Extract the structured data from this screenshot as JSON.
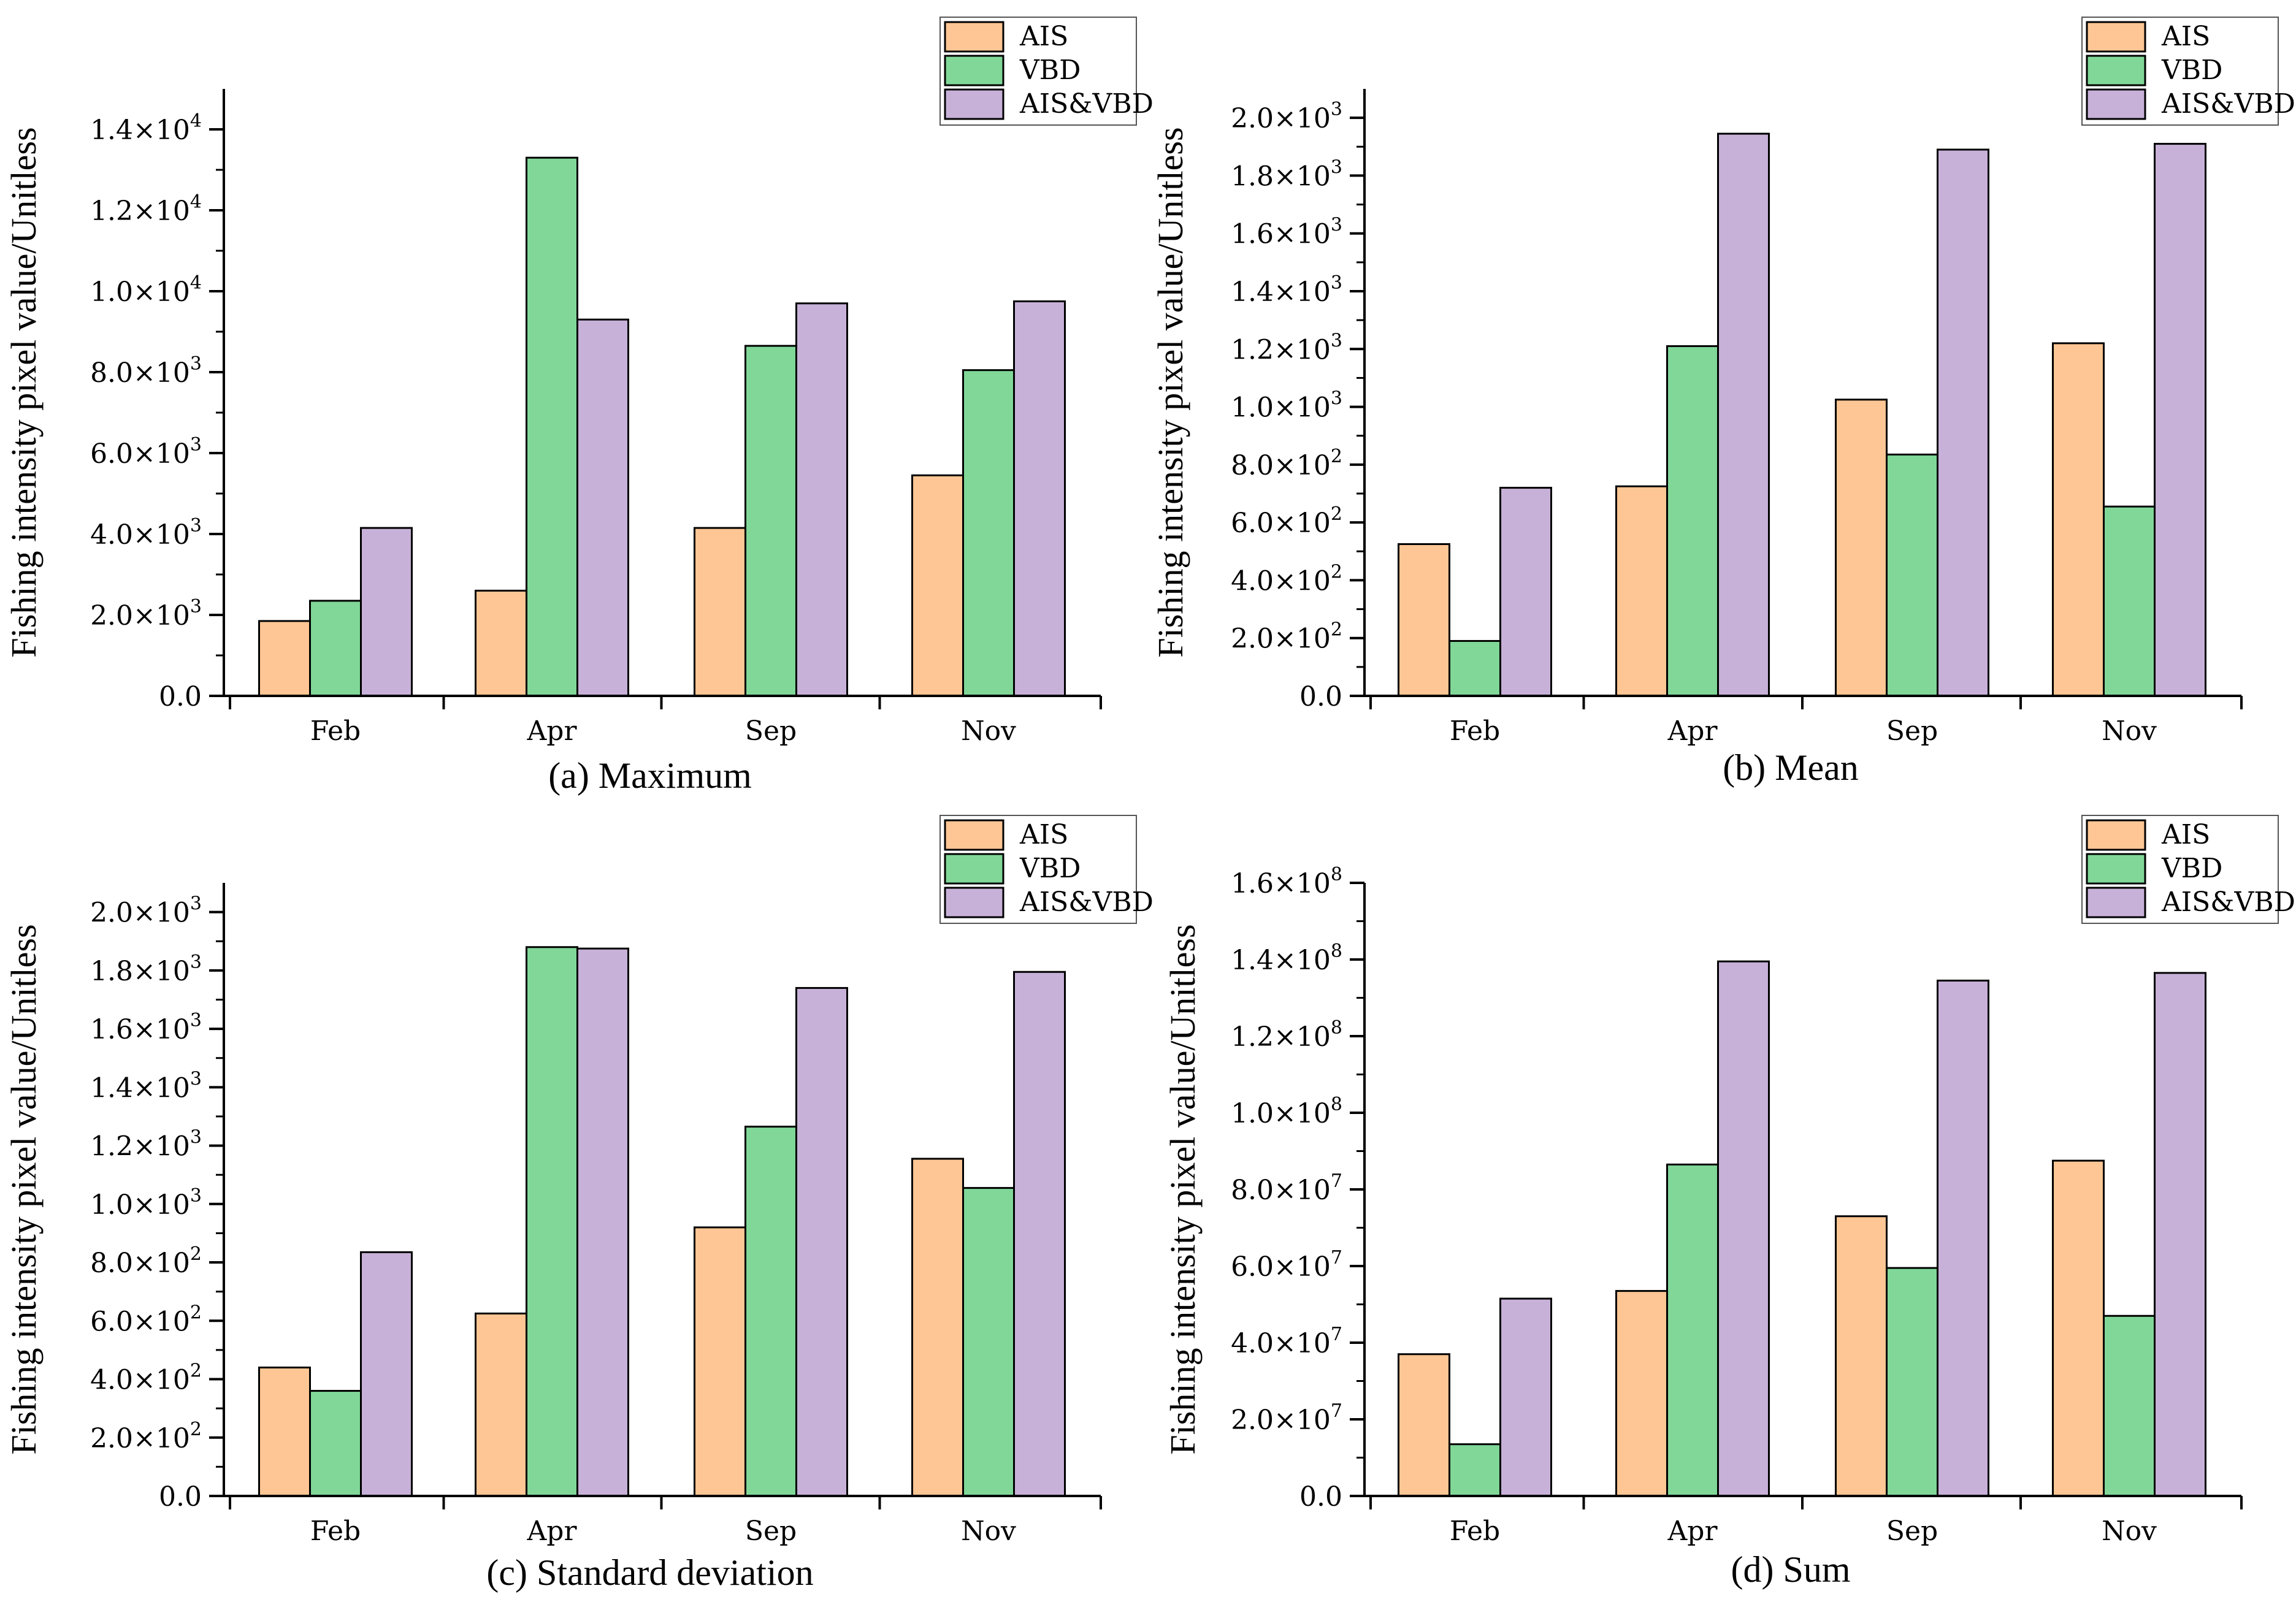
{
  "colors": {
    "AIS": "#fdc694",
    "VBD": "#80d798",
    "AIS&VBD": "#c7b1d8",
    "axis": "#000000"
  },
  "chart_data": [
    {
      "type": "bar",
      "panel": "a",
      "title": "(a)  Maximum",
      "categories": [
        "Feb",
        "Apr",
        "Sep",
        "Nov"
      ],
      "ylabel": "Fishing intensity pixel value/Unitless",
      "xlabel": "",
      "ylim": [
        0,
        15000
      ],
      "yticks": [
        {
          "value": 0,
          "mant": "0.0",
          "exp": ""
        },
        {
          "value": 2000,
          "mant": "2.0×10",
          "exp": "3"
        },
        {
          "value": 4000,
          "mant": "4.0×10",
          "exp": "3"
        },
        {
          "value": 6000,
          "mant": "6.0×10",
          "exp": "3"
        },
        {
          "value": 8000,
          "mant": "8.0×10",
          "exp": "3"
        },
        {
          "value": 10000,
          "mant": "1.0×10",
          "exp": "4"
        },
        {
          "value": 12000,
          "mant": "1.2×10",
          "exp": "4"
        },
        {
          "value": 14000,
          "mant": "1.4×10",
          "exp": "4"
        }
      ],
      "legend_position": "top-right",
      "series": [
        {
          "name": "AIS",
          "values": [
            1850,
            2600,
            4150,
            5450
          ]
        },
        {
          "name": "VBD",
          "values": [
            2350,
            13300,
            8650,
            8050
          ]
        },
        {
          "name": "AIS&VBD",
          "values": [
            4150,
            9300,
            9700,
            9750
          ]
        }
      ]
    },
    {
      "type": "bar",
      "panel": "b",
      "title": "(b)  Mean",
      "categories": [
        "Feb",
        "Apr",
        "Sep",
        "Nov"
      ],
      "ylabel": "Fishing intensity pixel value/Unitless",
      "xlabel": "",
      "ylim": [
        0,
        2100
      ],
      "yticks": [
        {
          "value": 0,
          "mant": "0.0",
          "exp": ""
        },
        {
          "value": 200,
          "mant": "2.0×10",
          "exp": "2"
        },
        {
          "value": 400,
          "mant": "4.0×10",
          "exp": "2"
        },
        {
          "value": 600,
          "mant": "6.0×10",
          "exp": "2"
        },
        {
          "value": 800,
          "mant": "8.0×10",
          "exp": "2"
        },
        {
          "value": 1000,
          "mant": "1.0×10",
          "exp": "3"
        },
        {
          "value": 1200,
          "mant": "1.2×10",
          "exp": "3"
        },
        {
          "value": 1400,
          "mant": "1.4×10",
          "exp": "3"
        },
        {
          "value": 1600,
          "mant": "1.6×10",
          "exp": "3"
        },
        {
          "value": 1800,
          "mant": "1.8×10",
          "exp": "3"
        },
        {
          "value": 2000,
          "mant": "2.0×10",
          "exp": "3"
        }
      ],
      "legend_position": "top-right",
      "series": [
        {
          "name": "AIS",
          "values": [
            525,
            725,
            1025,
            1220
          ]
        },
        {
          "name": "VBD",
          "values": [
            190,
            1210,
            835,
            655
          ]
        },
        {
          "name": "AIS&VBD",
          "values": [
            720,
            1945,
            1890,
            1910
          ]
        }
      ]
    },
    {
      "type": "bar",
      "panel": "c",
      "title": "(c)  Standard deviation",
      "categories": [
        "Feb",
        "Apr",
        "Sep",
        "Nov"
      ],
      "ylabel": "Fishing intensity pixel value/Unitless",
      "xlabel": "",
      "ylim": [
        0,
        2100
      ],
      "yticks": [
        {
          "value": 0,
          "mant": "0.0",
          "exp": ""
        },
        {
          "value": 200,
          "mant": "2.0×10",
          "exp": "2"
        },
        {
          "value": 400,
          "mant": "4.0×10",
          "exp": "2"
        },
        {
          "value": 600,
          "mant": "6.0×10",
          "exp": "2"
        },
        {
          "value": 800,
          "mant": "8.0×10",
          "exp": "2"
        },
        {
          "value": 1000,
          "mant": "1.0×10",
          "exp": "3"
        },
        {
          "value": 1200,
          "mant": "1.2×10",
          "exp": "3"
        },
        {
          "value": 1400,
          "mant": "1.4×10",
          "exp": "3"
        },
        {
          "value": 1600,
          "mant": "1.6×10",
          "exp": "3"
        },
        {
          "value": 1800,
          "mant": "1.8×10",
          "exp": "3"
        },
        {
          "value": 2000,
          "mant": "2.0×10",
          "exp": "3"
        }
      ],
      "legend_position": "top-right",
      "series": [
        {
          "name": "AIS",
          "values": [
            440,
            625,
            920,
            1155
          ]
        },
        {
          "name": "VBD",
          "values": [
            360,
            1880,
            1265,
            1055
          ]
        },
        {
          "name": "AIS&VBD",
          "values": [
            835,
            1875,
            1740,
            1795
          ]
        }
      ]
    },
    {
      "type": "bar",
      "panel": "d",
      "title": "(d)     Sum",
      "categories": [
        "Feb",
        "Apr",
        "Sep",
        "Nov"
      ],
      "ylabel": "Fishing intensity pixel value/Unitless",
      "xlabel": "",
      "ylim": [
        0,
        160000000
      ],
      "yticks": [
        {
          "value": 0,
          "mant": "0.0",
          "exp": ""
        },
        {
          "value": 20000000,
          "mant": "2.0×10",
          "exp": "7"
        },
        {
          "value": 40000000,
          "mant": "4.0×10",
          "exp": "7"
        },
        {
          "value": 60000000,
          "mant": "6.0×10",
          "exp": "7"
        },
        {
          "value": 80000000,
          "mant": "8.0×10",
          "exp": "7"
        },
        {
          "value": 100000000,
          "mant": "1.0×10",
          "exp": "8"
        },
        {
          "value": 120000000,
          "mant": "1.2×10",
          "exp": "8"
        },
        {
          "value": 140000000,
          "mant": "1.4×10",
          "exp": "8"
        },
        {
          "value": 160000000,
          "mant": "1.6×10",
          "exp": "8"
        }
      ],
      "legend_position": "top-right",
      "series": [
        {
          "name": "AIS",
          "values": [
            37000000,
            53500000,
            73000000,
            87500000
          ]
        },
        {
          "name": "VBD",
          "values": [
            13500000,
            86500000,
            59500000,
            47000000
          ]
        },
        {
          "name": "AIS&VBD",
          "values": [
            51500000,
            139500000,
            134500000,
            136500000
          ]
        }
      ]
    }
  ]
}
